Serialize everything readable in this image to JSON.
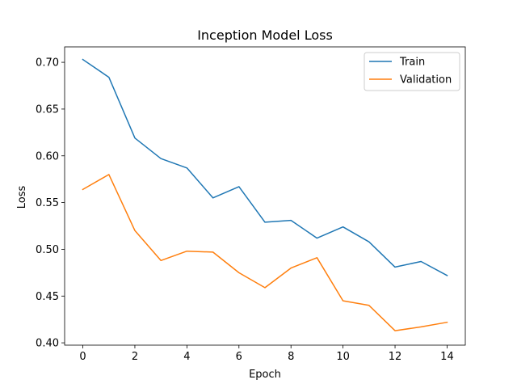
{
  "chart_data": {
    "type": "line",
    "title": "Inception Model Loss",
    "xlabel": "Epoch",
    "ylabel": "Loss",
    "xlim": [
      -0.7,
      14.7
    ],
    "ylim": [
      0.3975,
      0.7165
    ],
    "xticks": [
      0,
      2,
      4,
      6,
      8,
      10,
      12,
      14
    ],
    "xtick_labels": [
      "0",
      "2",
      "4",
      "6",
      "8",
      "10",
      "12",
      "14"
    ],
    "yticks": [
      0.4,
      0.45,
      0.5,
      0.55,
      0.6,
      0.65,
      0.7
    ],
    "ytick_labels": [
      "0.40",
      "0.45",
      "0.50",
      "0.55",
      "0.60",
      "0.65",
      "0.70"
    ],
    "grid": false,
    "legend_position": "top-right",
    "x": [
      0,
      1,
      2,
      3,
      4,
      5,
      6,
      7,
      8,
      9,
      10,
      11,
      12,
      13,
      14
    ],
    "series": [
      {
        "name": "Train",
        "color": "#1f77b4",
        "values": [
          0.703,
          0.684,
          0.619,
          0.597,
          0.587,
          0.555,
          0.567,
          0.529,
          0.531,
          0.512,
          0.524,
          0.508,
          0.481,
          0.487,
          0.472
        ]
      },
      {
        "name": "Validation",
        "color": "#ff7f0e",
        "values": [
          0.564,
          0.58,
          0.52,
          0.488,
          0.498,
          0.497,
          0.475,
          0.459,
          0.48,
          0.491,
          0.445,
          0.44,
          0.413,
          0.417,
          0.422
        ]
      }
    ]
  }
}
